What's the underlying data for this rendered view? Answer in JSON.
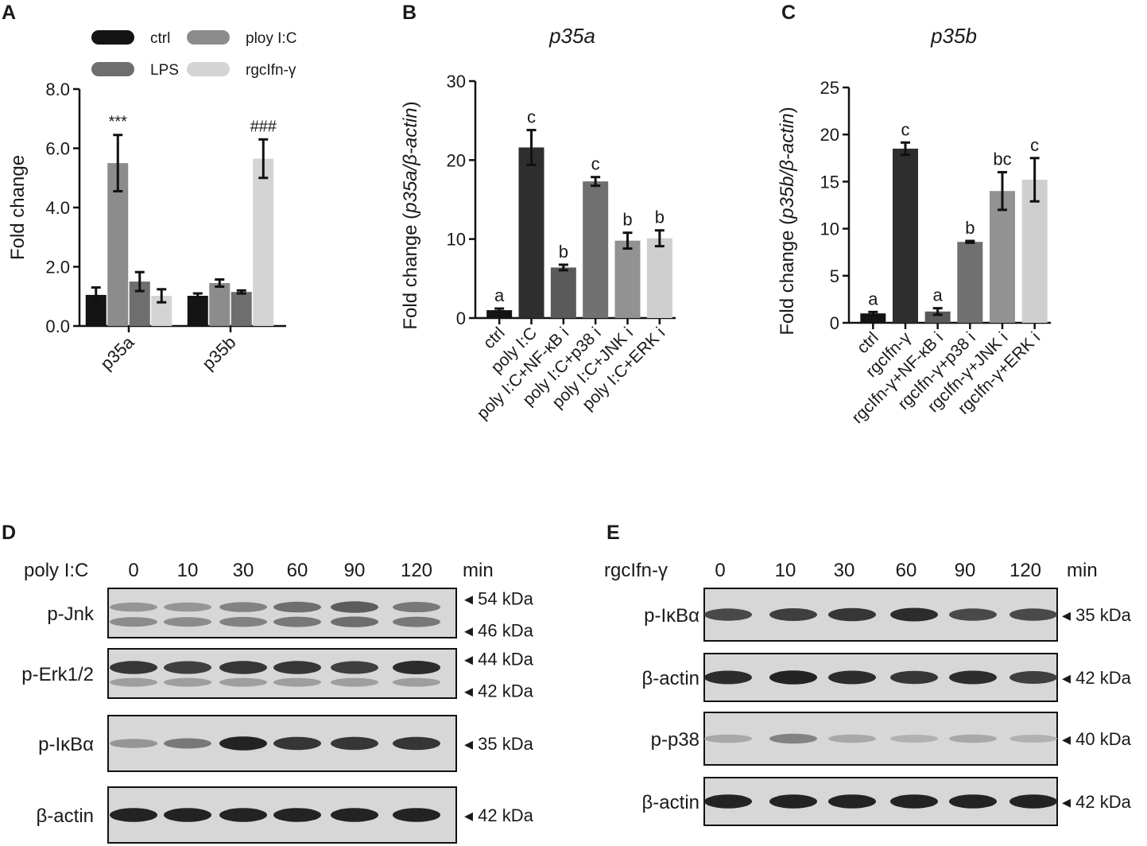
{
  "panels": {
    "a": {
      "letter": "A"
    },
    "b": {
      "letter": "B"
    },
    "c": {
      "letter": "C"
    },
    "d": {
      "letter": "D"
    },
    "e": {
      "letter": "E"
    }
  },
  "colors": {
    "ctrl": "#141414",
    "black_bar": "#2e2e2e",
    "dark_gray": "#5a5a5a",
    "mid_gray": "#6f6f6f",
    "gray": "#8a8a8a",
    "light_gray": "#cfcfcf",
    "blot_bg": "#d7d7d7"
  },
  "chart_data": [
    {
      "panel": "A",
      "type": "bar",
      "ylabel": "Fold change",
      "ylim": [
        0,
        8
      ],
      "yticks": [
        "0.0",
        "2.0",
        "4.0",
        "6.0",
        "8.0"
      ],
      "categories": [
        "p35a",
        "p35b"
      ],
      "series": [
        {
          "name": "ctrl",
          "values": [
            1.05,
            1.02
          ],
          "errors": [
            0.25,
            0.08
          ],
          "color": "#141414"
        },
        {
          "name": "ploy I:C",
          "values": [
            5.5,
            1.45
          ],
          "errors": [
            0.95,
            0.12
          ],
          "color": "#8c8c8c"
        },
        {
          "name": "LPS",
          "values": [
            1.5,
            1.15
          ],
          "errors": [
            0.32,
            0.05
          ],
          "color": "#6e6e6e"
        },
        {
          "name": "rgcIfn-γ",
          "values": [
            1.02,
            5.65
          ],
          "errors": [
            0.22,
            0.65
          ],
          "color": "#d4d4d4"
        }
      ],
      "annotations": [
        {
          "series": 1,
          "category": 0,
          "text": "***"
        },
        {
          "series": 3,
          "category": 1,
          "text": "###"
        }
      ],
      "legend": "top"
    },
    {
      "panel": "B",
      "type": "bar",
      "title": "p35a",
      "ylabel_prefix": "Fold change (",
      "ylabel_italic": "p35a/β-actin",
      "ylabel_suffix": ")",
      "ylim": [
        0,
        30
      ],
      "yticks": [
        "0",
        "10",
        "20",
        "30"
      ],
      "categories": [
        "ctrl",
        "poly I:C",
        "poly I:C+NF-κB i",
        "poly I:C+p38 i",
        "poly I:C+JNK i",
        "poly I:C+ERK i"
      ],
      "values": [
        1.0,
        21.6,
        6.4,
        17.3,
        9.8,
        10.1
      ],
      "errors": [
        0.2,
        2.2,
        0.35,
        0.55,
        1.0,
        1.0
      ],
      "colors": [
        "#141414",
        "#2e2e2e",
        "#5a5a5a",
        "#707070",
        "#929292",
        "#cfcfcf"
      ],
      "letters": [
        "a",
        "c",
        "b",
        "c",
        "b",
        "b"
      ]
    },
    {
      "panel": "C",
      "type": "bar",
      "title": "p35b",
      "ylabel_prefix": "Fold change (",
      "ylabel_italic": "p35b/β-actin",
      "ylabel_suffix": ")",
      "ylim": [
        0,
        25
      ],
      "yticks": [
        "0",
        "5",
        "10",
        "15",
        "20",
        "25"
      ],
      "categories": [
        "ctrl",
        "rgcIfn-γ",
        "rgcIfn-γ+NF-κB i",
        "rgcIfn-γ+p38 i",
        "rgcIfn-γ+JNK i",
        "rgcIfn-γ+ERK i"
      ],
      "values": [
        1.0,
        18.5,
        1.2,
        8.6,
        14.0,
        15.2
      ],
      "errors": [
        0.15,
        0.65,
        0.35,
        0.1,
        2.0,
        2.3
      ],
      "colors": [
        "#141414",
        "#2e2e2e",
        "#5a5a5a",
        "#707070",
        "#929292",
        "#cfcfcf"
      ],
      "letters": [
        "a",
        "c",
        "a",
        "b",
        "bc",
        "c"
      ]
    }
  ],
  "blots": {
    "d": {
      "treatment": "poly I:C",
      "times": [
        "0",
        "10",
        "30",
        "60",
        "90",
        "120"
      ],
      "unit": "min",
      "rows": [
        {
          "label": "p-Jnk",
          "markers": [
            "54 kDa",
            "46 kDa"
          ],
          "bands": [
            {
              "intensity": [
                0.35,
                0.35,
                0.45,
                0.55,
                0.65,
                0.5
              ]
            },
            {
              "intensity": [
                0.4,
                0.4,
                0.45,
                0.5,
                0.55,
                0.5
              ]
            }
          ]
        },
        {
          "label": "p-Erk1/2",
          "markers": [
            "44 kDa",
            "42 kDa"
          ],
          "bands": [
            {
              "intensity": [
                0.85,
                0.8,
                0.85,
                0.85,
                0.8,
                0.9
              ]
            },
            {
              "intensity": [
                0.3,
                0.3,
                0.3,
                0.3,
                0.3,
                0.3
              ]
            }
          ]
        },
        {
          "label": "p-IκBα",
          "markers": [
            "35 kDa"
          ],
          "bands": [
            {
              "intensity": [
                0.35,
                0.5,
                0.95,
                0.85,
                0.85,
                0.85
              ]
            }
          ]
        },
        {
          "label": "β-actin",
          "markers": [
            "42 kDa"
          ],
          "bands": [
            {
              "intensity": [
                0.95,
                0.95,
                0.95,
                0.95,
                0.95,
                0.95
              ]
            }
          ]
        }
      ]
    },
    "e": {
      "treatment": "rgcIfn-γ",
      "times": [
        "0",
        "10",
        "30",
        "60",
        "90",
        "120"
      ],
      "unit": "min",
      "rows": [
        {
          "label": "p-IκBα",
          "markers": [
            "35 kDa"
          ],
          "bands": [
            {
              "intensity": [
                0.75,
                0.8,
                0.85,
                0.9,
                0.75,
                0.75
              ]
            }
          ]
        },
        {
          "label": "β-actin",
          "markers": [
            "42 kDa"
          ],
          "bands": [
            {
              "intensity": [
                0.9,
                0.95,
                0.9,
                0.85,
                0.9,
                0.8
              ]
            }
          ]
        },
        {
          "label": "p-p38",
          "markers": [
            "40 kDa"
          ],
          "bands": [
            {
              "intensity": [
                0.25,
                0.45,
                0.25,
                0.2,
                0.25,
                0.2
              ]
            }
          ]
        },
        {
          "label": "β-actin",
          "markers": [
            "42 kDa"
          ],
          "bands": [
            {
              "intensity": [
                0.95,
                0.95,
                0.95,
                0.95,
                0.95,
                0.95
              ]
            }
          ]
        }
      ]
    }
  }
}
